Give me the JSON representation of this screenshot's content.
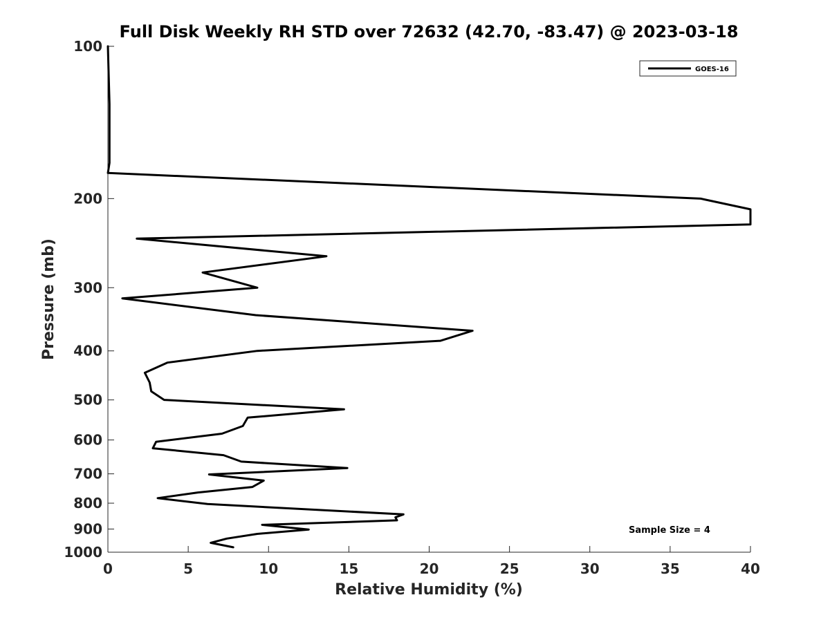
{
  "chart_data": {
    "type": "line",
    "title": "Full Disk Weekly RH STD over 72632 (42.70, -83.47) @ 2023-03-18",
    "xlabel": "Relative Humidity (%)",
    "ylabel": "Pressure (mb)",
    "xlim": [
      0,
      40
    ],
    "ylim": [
      100,
      1000
    ],
    "yscale": "log",
    "y_reversed": true,
    "grid": false,
    "x_ticks": [
      0,
      5,
      10,
      15,
      20,
      25,
      30,
      35,
      40
    ],
    "x_tick_labels": [
      "0",
      "5",
      "10",
      "15",
      "20",
      "25",
      "30",
      "35",
      "40"
    ],
    "y_ticks": [
      100,
      200,
      300,
      400,
      500,
      600,
      700,
      800,
      900,
      1000
    ],
    "y_tick_labels": [
      "100",
      "200",
      "300",
      "400",
      "500",
      "600",
      "700",
      "800",
      "900",
      "1000"
    ],
    "legend_position": "top-right",
    "series": [
      {
        "name": "GOES-16",
        "color": "#000000",
        "points": [
          [
            0.0,
            100
          ],
          [
            0.05,
            115
          ],
          [
            0.1,
            130
          ],
          [
            0.1,
            150
          ],
          [
            0.1,
            170
          ],
          [
            0.0,
            178
          ],
          [
            36.9,
            200
          ],
          [
            40.0,
            210
          ],
          [
            40.0,
            225
          ],
          [
            1.8,
            240
          ],
          [
            13.6,
            260
          ],
          [
            5.9,
            280
          ],
          [
            9.3,
            300
          ],
          [
            0.9,
            315
          ],
          [
            9.2,
            340
          ],
          [
            22.7,
            365
          ],
          [
            20.7,
            382
          ],
          [
            9.3,
            400
          ],
          [
            3.7,
            422
          ],
          [
            2.3,
            442
          ],
          [
            2.6,
            462
          ],
          [
            2.7,
            481
          ],
          [
            3.5,
            500
          ],
          [
            14.7,
            522
          ],
          [
            8.7,
            542
          ],
          [
            8.4,
            563
          ],
          [
            7.1,
            583
          ],
          [
            3.0,
            605
          ],
          [
            2.8,
            623
          ],
          [
            7.2,
            643
          ],
          [
            8.3,
            662
          ],
          [
            14.9,
            682
          ],
          [
            6.3,
            702
          ],
          [
            9.7,
            722
          ],
          [
            9.0,
            743
          ],
          [
            5.6,
            762
          ],
          [
            3.1,
            782
          ],
          [
            6.2,
            803
          ],
          [
            18.4,
            842
          ],
          [
            17.9,
            853
          ],
          [
            18.0,
            865
          ],
          [
            9.6,
            883
          ],
          [
            12.5,
            902
          ],
          [
            9.3,
            920
          ],
          [
            7.4,
            940
          ],
          [
            6.4,
            958
          ],
          [
            7.8,
            978
          ]
        ]
      }
    ],
    "annotations": [
      {
        "text": "Sample Size = 4",
        "position": "bottom-right"
      }
    ]
  }
}
